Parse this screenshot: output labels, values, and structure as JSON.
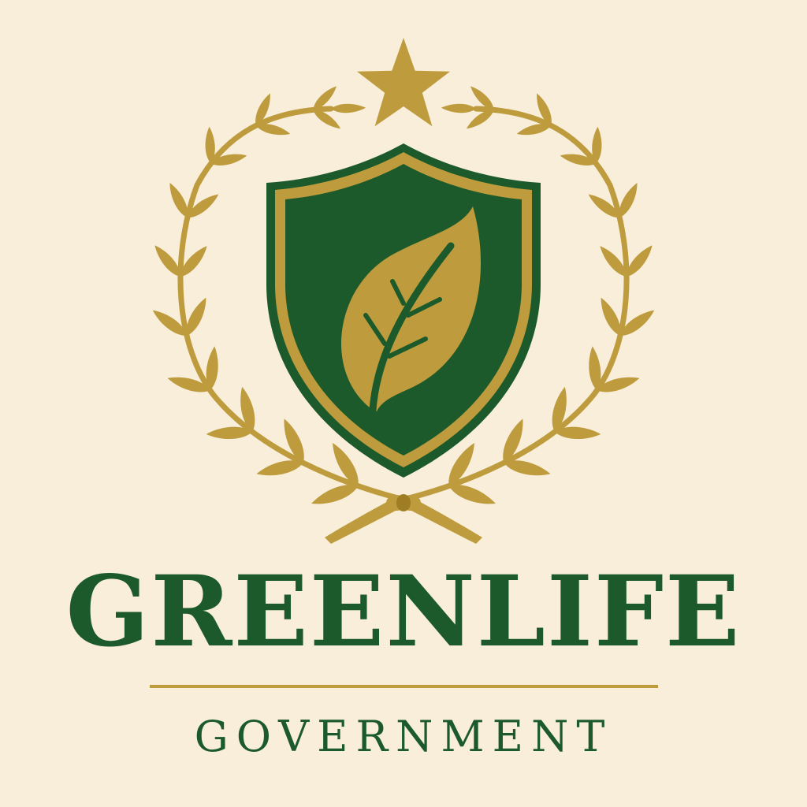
{
  "logo": {
    "name": "GREENLIFE",
    "tagline": "GOVERNMENT"
  },
  "colors": {
    "background": "#F8EEDA",
    "green": "#1C5A2B",
    "gold": "#BE9B3C",
    "gold_dark": "#9E7D24"
  },
  "icons": {
    "top": "star-icon",
    "left": "laurel-branch-left-icon",
    "right": "laurel-branch-right-icon",
    "center": "shield-icon",
    "inner": "leaf-icon",
    "bottom": "ribbon-knot-icon"
  }
}
